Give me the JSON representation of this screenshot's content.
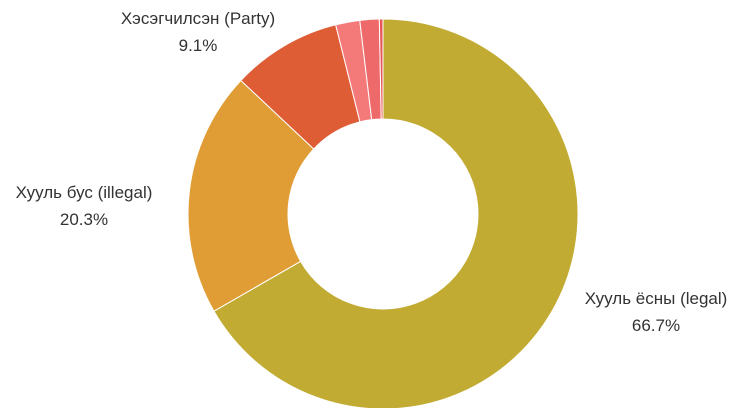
{
  "chart_data": {
    "type": "pie",
    "variant": "donut",
    "slices": [
      {
        "label": "Хууль ёсны (legal)",
        "value": 66.7,
        "value_label": "66.7%",
        "color": "#c2ab33",
        "show_label": true
      },
      {
        "label": "Хууль бус (illegal)",
        "value": 20.3,
        "value_label": "20.3%",
        "color": "#e09d35",
        "show_label": true
      },
      {
        "label": "Хэсэгчилсэн (Party)",
        "value": 9.1,
        "value_label": "9.1%",
        "color": "#de5d35",
        "show_label": true
      },
      {
        "label": "",
        "value": 2.0,
        "value_label": "",
        "color": "#f47a7a",
        "show_label": false
      },
      {
        "label": "",
        "value": 1.6,
        "value_label": "",
        "color": "#ee6a6a",
        "show_label": false
      },
      {
        "label": "",
        "value": 0.3,
        "value_label": "",
        "color": "#e85858",
        "show_label": false
      }
    ],
    "legend": "none",
    "start_angle": "top",
    "direction": "clockwise"
  }
}
